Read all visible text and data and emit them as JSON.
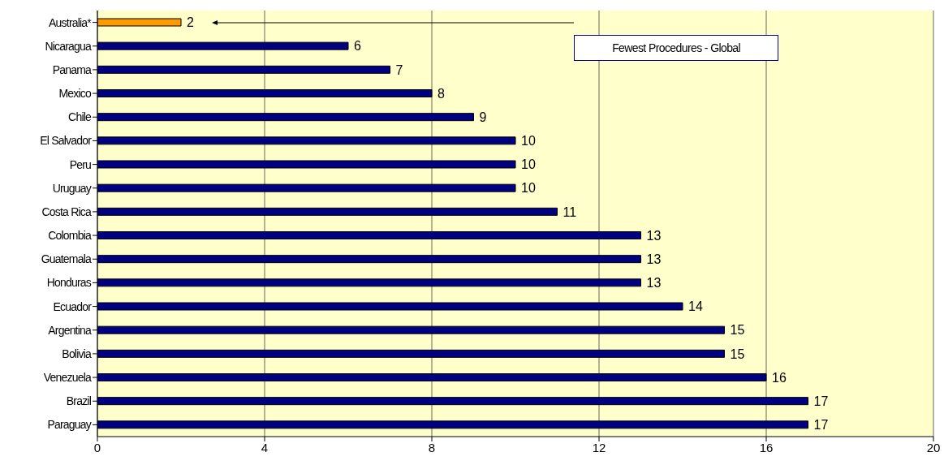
{
  "chart_data": {
    "type": "bar",
    "orientation": "horizontal",
    "categories": [
      "Australia*",
      "Nicaragua",
      "Panama",
      "Mexico",
      "Chile",
      "El Salvador",
      "Peru",
      "Uruguay",
      "Costa Rica",
      "Colombia",
      "Guatemala",
      "Honduras",
      "Ecuador",
      "Argentina",
      "Bolivia",
      "Venezuela",
      "Brazil",
      "Paraguay"
    ],
    "values": [
      2,
      6,
      7,
      8,
      9,
      10,
      10,
      10,
      11,
      13,
      13,
      13,
      14,
      15,
      15,
      16,
      17,
      17
    ],
    "colors": [
      "#ff9900",
      "#000080",
      "#000080",
      "#000080",
      "#000080",
      "#000080",
      "#000080",
      "#000080",
      "#000080",
      "#000080",
      "#000080",
      "#000080",
      "#000080",
      "#000080",
      "#000080",
      "#000080",
      "#000080",
      "#000080"
    ],
    "xlim": [
      0,
      20
    ],
    "xticks": [
      0,
      4,
      8,
      12,
      16,
      20
    ],
    "grid": "x",
    "data_labels": true,
    "annotations": [
      "Fewest Procedures - Global"
    ]
  }
}
